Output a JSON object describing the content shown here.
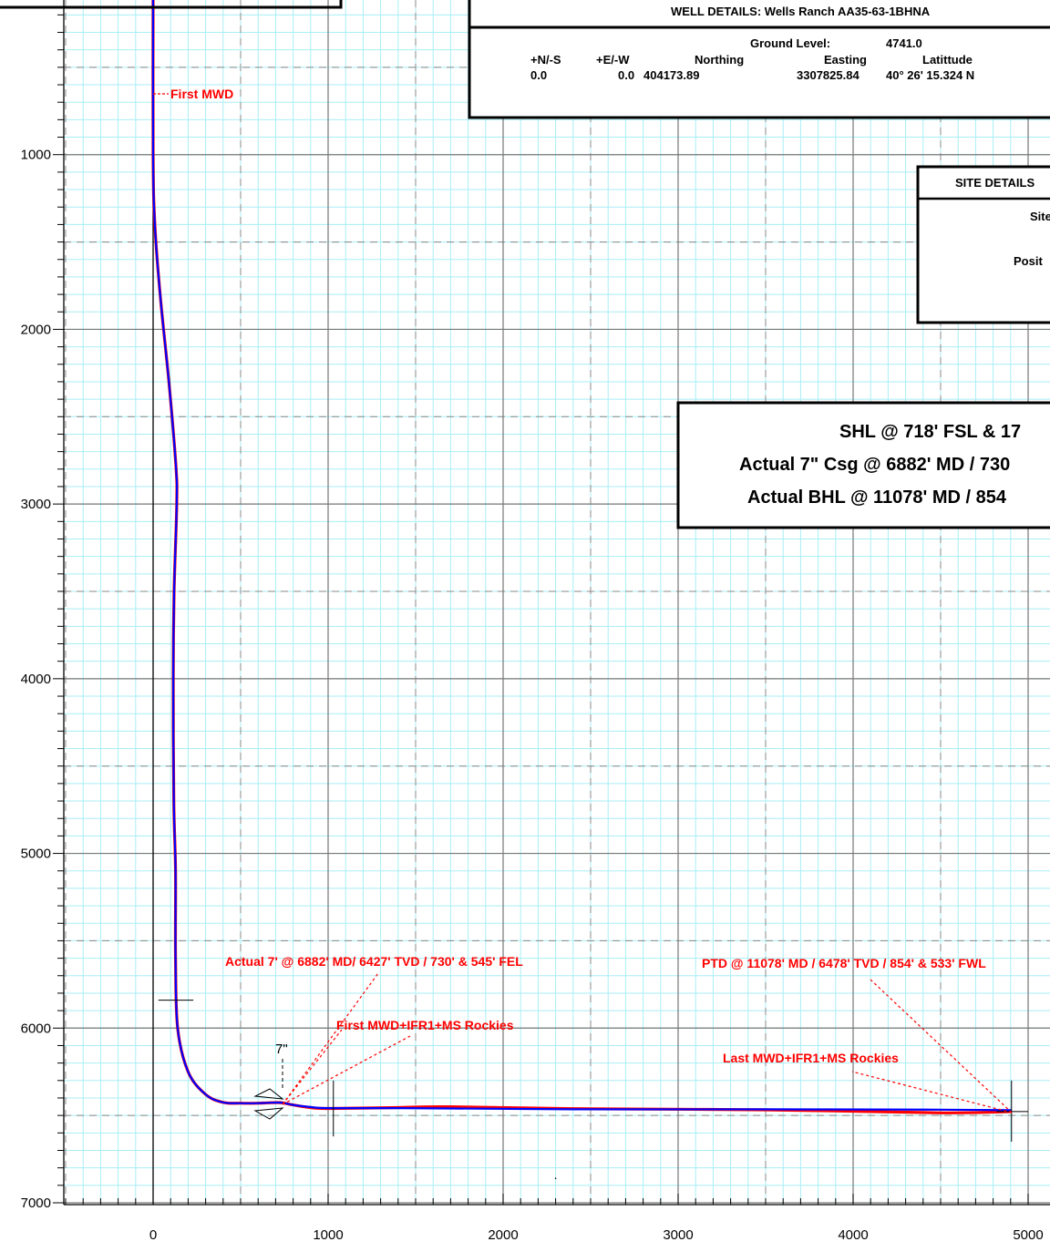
{
  "chart_data": {
    "type": "line",
    "xlim": [
      -500,
      5000
    ],
    "ylim": [
      7000,
      0
    ],
    "x_ticks": [
      0,
      1000,
      2000,
      3000,
      4000,
      5000
    ],
    "y_ticks": [
      1000,
      2000,
      3000,
      4000,
      5000,
      6000,
      7000
    ],
    "grid": true,
    "series": [
      {
        "color": "#ff0000",
        "x": [
          0,
          0,
          10,
          40,
          90,
          130,
          135,
          120,
          115,
          118,
          128,
          128,
          140,
          200,
          300,
          400,
          500,
          600,
          650,
          730,
          800,
          900,
          1000,
          1400,
          1700,
          2500,
          3500,
          4500,
          4905
        ],
        "y": [
          0,
          1000,
          1400,
          1800,
          2300,
          2780,
          3000,
          3500,
          4000,
          4700,
          5100,
          5600,
          6000,
          6250,
          6380,
          6425,
          6430,
          6430,
          6428,
          6427,
          6440,
          6455,
          6460,
          6455,
          6450,
          6462,
          6468,
          6485,
          6478
        ]
      },
      {
        "color": "#0000ff",
        "x": [
          0,
          0,
          10,
          40,
          90,
          130,
          135,
          120,
          115,
          118,
          128,
          128,
          140,
          200,
          300,
          400,
          500,
          600,
          650,
          730,
          800,
          900,
          1000,
          1400,
          1700,
          2500,
          3500,
          4500,
          4905
        ],
        "y": [
          0,
          1000,
          1400,
          1800,
          2300,
          2780,
          3000,
          3500,
          4000,
          4700,
          5100,
          5600,
          6000,
          6250,
          6380,
          6425,
          6430,
          6430,
          6428,
          6427,
          6440,
          6452,
          6458,
          6458,
          6460,
          6465,
          6465,
          6467,
          6470
        ]
      }
    ],
    "annotations": [
      {
        "text": "First MWD",
        "x": 0,
        "y": 700
      },
      {
        "text": "Actual 7' @ 6882' MD/ 6427' TVD / 730' & 545' FEL",
        "x": 730,
        "y": 6427
      },
      {
        "text": "First MWD+IFR1+MS Rockies",
        "x": 730,
        "y": 6427
      },
      {
        "text": "PTD @ 11078' MD / 6478' TVD / 854' & 533' FWL",
        "x": 4905,
        "y": 6478
      },
      {
        "text": "Last MWD+IFR1+MS Rockies",
        "x": 4905,
        "y": 6478
      }
    ],
    "casing_label": "7\""
  },
  "well_details": {
    "title": "WELL DETAILS:  Wells Ranch AA35-63-1BHNA",
    "ground_level_label": "Ground Level:",
    "ground_level_value": "4741.0",
    "headers": [
      "+N/-S",
      "+E/-W",
      "Northing",
      "Easting",
      "Latittude"
    ],
    "values": [
      "0.0",
      "0.0",
      "404173.89",
      "3307825.84",
      "40° 26' 15.324 N"
    ]
  },
  "site_details": {
    "title": "SITE  DETAILS",
    "line1": "Site",
    "line2": "Posit"
  },
  "location_box": {
    "line1": "SHL @ 718' FSL & 17",
    "line2": "Actual 7\" Csg @ 6882' MD / 730",
    "line3": "Actual BHL @ 11078' MD / 854"
  }
}
